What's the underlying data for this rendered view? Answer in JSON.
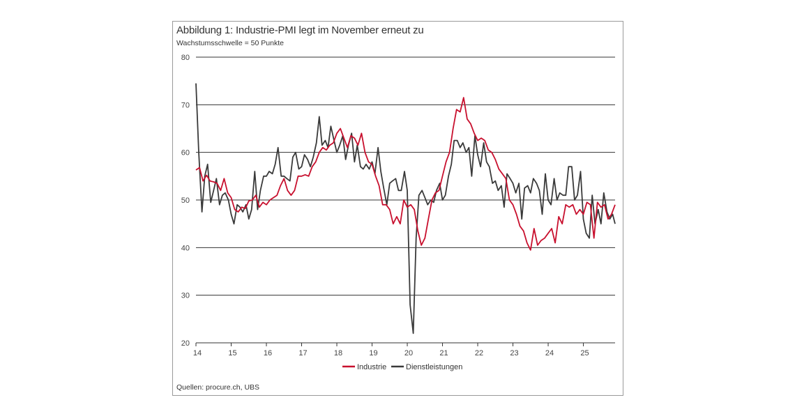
{
  "figure": {
    "title": "Abbildung 1: Industrie-PMI legt im November erneut zu",
    "subtitle": "Wachstumsschwelle = 50 Punkte",
    "source": "Quellen: procure.ch, UBS"
  },
  "colors": {
    "industrie": "#c8102e",
    "dienstleistungen": "#3a3a3a",
    "grid": "#333333"
  },
  "chart_data": {
    "type": "line",
    "title": "Abbildung 1: Industrie-PMI legt im November erneut zu",
    "subtitle": "Wachstumsschwelle = 50 Punkte",
    "xlabel": "",
    "ylabel": "",
    "xlim": [
      2014.0,
      2025.9
    ],
    "ylim": [
      20,
      80
    ],
    "yticks": [
      20,
      30,
      40,
      50,
      60,
      70,
      80
    ],
    "xticks": [
      {
        "value": 2014,
        "label": "14"
      },
      {
        "value": 2015,
        "label": "15"
      },
      {
        "value": 2016,
        "label": "16"
      },
      {
        "value": 2017,
        "label": "17"
      },
      {
        "value": 2018,
        "label": "18"
      },
      {
        "value": 2019,
        "label": "19"
      },
      {
        "value": 2020,
        "label": "20"
      },
      {
        "value": 2021,
        "label": "21"
      },
      {
        "value": 2022,
        "label": "22"
      },
      {
        "value": 2023,
        "label": "23"
      },
      {
        "value": 2024,
        "label": "24"
      },
      {
        "value": 2025,
        "label": "25"
      }
    ],
    "grid": "horizontal",
    "legend_position": "bottom-center",
    "series": [
      {
        "name": "Industrie",
        "color": "#c8102e",
        "points": [
          [
            2014.0,
            56.3
          ],
          [
            2014.1,
            56.8
          ],
          [
            2014.2,
            54.0
          ],
          [
            2014.3,
            55.2
          ],
          [
            2014.4,
            54.0
          ],
          [
            2014.5,
            53.8
          ],
          [
            2014.6,
            53.5
          ],
          [
            2014.7,
            52.0
          ],
          [
            2014.8,
            54.5
          ],
          [
            2014.9,
            51.5
          ],
          [
            2015.0,
            50.5
          ],
          [
            2015.1,
            48.0
          ],
          [
            2015.2,
            47.5
          ],
          [
            2015.3,
            48.5
          ],
          [
            2015.4,
            48.2
          ],
          [
            2015.5,
            49.8
          ],
          [
            2015.6,
            50.0
          ],
          [
            2015.7,
            51.0
          ],
          [
            2015.8,
            48.5
          ],
          [
            2015.9,
            49.5
          ],
          [
            2016.0,
            49.0
          ],
          [
            2016.1,
            50.0
          ],
          [
            2016.2,
            50.5
          ],
          [
            2016.3,
            51.0
          ],
          [
            2016.4,
            53.0
          ],
          [
            2016.5,
            54.5
          ],
          [
            2016.6,
            52.0
          ],
          [
            2016.7,
            51.0
          ],
          [
            2016.8,
            52.0
          ],
          [
            2016.9,
            55.0
          ],
          [
            2017.0,
            55.0
          ],
          [
            2017.1,
            55.3
          ],
          [
            2017.2,
            55.0
          ],
          [
            2017.3,
            57.0
          ],
          [
            2017.4,
            58.0
          ],
          [
            2017.5,
            60.0
          ],
          [
            2017.6,
            61.0
          ],
          [
            2017.7,
            60.5
          ],
          [
            2017.8,
            61.5
          ],
          [
            2017.9,
            62.0
          ],
          [
            2018.0,
            64.0
          ],
          [
            2018.1,
            65.0
          ],
          [
            2018.2,
            63.0
          ],
          [
            2018.3,
            61.0
          ],
          [
            2018.4,
            63.5
          ],
          [
            2018.5,
            63.0
          ],
          [
            2018.6,
            61.5
          ],
          [
            2018.7,
            64.0
          ],
          [
            2018.8,
            60.0
          ],
          [
            2018.9,
            58.0
          ],
          [
            2019.0,
            57.5
          ],
          [
            2019.1,
            55.0
          ],
          [
            2019.2,
            53.0
          ],
          [
            2019.3,
            49.0
          ],
          [
            2019.4,
            49.0
          ],
          [
            2019.5,
            48.0
          ],
          [
            2019.6,
            45.0
          ],
          [
            2019.7,
            46.5
          ],
          [
            2019.8,
            45.0
          ],
          [
            2019.9,
            50.0
          ],
          [
            2020.0,
            48.5
          ],
          [
            2020.1,
            49.0
          ],
          [
            2020.2,
            48.0
          ],
          [
            2020.3,
            43.5
          ],
          [
            2020.4,
            40.5
          ],
          [
            2020.5,
            42.0
          ],
          [
            2020.6,
            46.0
          ],
          [
            2020.7,
            50.0
          ],
          [
            2020.8,
            51.5
          ],
          [
            2020.9,
            52.0
          ],
          [
            2021.0,
            55.0
          ],
          [
            2021.1,
            58.0
          ],
          [
            2021.2,
            60.0
          ],
          [
            2021.3,
            65.0
          ],
          [
            2021.4,
            69.0
          ],
          [
            2021.5,
            68.5
          ],
          [
            2021.6,
            71.5
          ],
          [
            2021.7,
            67.0
          ],
          [
            2021.8,
            66.0
          ],
          [
            2021.9,
            64.0
          ],
          [
            2022.0,
            62.5
          ],
          [
            2022.1,
            63.0
          ],
          [
            2022.2,
            62.5
          ],
          [
            2022.3,
            60.5
          ],
          [
            2022.4,
            60.0
          ],
          [
            2022.5,
            58.5
          ],
          [
            2022.6,
            56.5
          ],
          [
            2022.7,
            55.5
          ],
          [
            2022.8,
            54.5
          ],
          [
            2022.9,
            50.0
          ],
          [
            2023.0,
            49.0
          ],
          [
            2023.1,
            47.0
          ],
          [
            2023.2,
            44.5
          ],
          [
            2023.3,
            43.5
          ],
          [
            2023.4,
            41.0
          ],
          [
            2023.5,
            39.5
          ],
          [
            2023.6,
            44.0
          ],
          [
            2023.7,
            40.5
          ],
          [
            2023.8,
            41.5
          ],
          [
            2023.9,
            42.0
          ],
          [
            2024.0,
            43.0
          ],
          [
            2024.1,
            44.0
          ],
          [
            2024.2,
            41.0
          ],
          [
            2024.3,
            46.5
          ],
          [
            2024.4,
            45.0
          ],
          [
            2024.5,
            49.0
          ],
          [
            2024.6,
            48.5
          ],
          [
            2024.7,
            49.0
          ],
          [
            2024.8,
            47.0
          ],
          [
            2024.9,
            48.0
          ],
          [
            2025.0,
            47.0
          ],
          [
            2025.1,
            49.5
          ],
          [
            2025.2,
            49.0
          ],
          [
            2025.3,
            42.0
          ],
          [
            2025.4,
            49.5
          ],
          [
            2025.5,
            48.5
          ],
          [
            2025.6,
            49.0
          ],
          [
            2025.7,
            46.0
          ],
          [
            2025.8,
            47.0
          ],
          [
            2025.9,
            49.0
          ]
        ]
      },
      {
        "name": "Dienstleistungen",
        "color": "#3a3a3a",
        "points": [
          [
            2014.0,
            74.5
          ],
          [
            2014.08,
            60.0
          ],
          [
            2014.17,
            47.5
          ],
          [
            2014.25,
            55.0
          ],
          [
            2014.33,
            57.5
          ],
          [
            2014.42,
            49.5
          ],
          [
            2014.5,
            52.0
          ],
          [
            2014.58,
            54.5
          ],
          [
            2014.67,
            49.0
          ],
          [
            2014.75,
            51.0
          ],
          [
            2014.83,
            51.5
          ],
          [
            2014.92,
            50.0
          ],
          [
            2015.0,
            47.0
          ],
          [
            2015.08,
            45.0
          ],
          [
            2015.17,
            49.0
          ],
          [
            2015.25,
            48.5
          ],
          [
            2015.33,
            47.5
          ],
          [
            2015.42,
            49.0
          ],
          [
            2015.5,
            46.0
          ],
          [
            2015.58,
            48.0
          ],
          [
            2015.67,
            56.0
          ],
          [
            2015.75,
            48.0
          ],
          [
            2015.83,
            52.0
          ],
          [
            2015.92,
            55.0
          ],
          [
            2016.0,
            55.0
          ],
          [
            2016.08,
            56.0
          ],
          [
            2016.17,
            55.5
          ],
          [
            2016.25,
            57.5
          ],
          [
            2016.33,
            61.0
          ],
          [
            2016.42,
            55.0
          ],
          [
            2016.5,
            55.0
          ],
          [
            2016.58,
            54.5
          ],
          [
            2016.67,
            54.0
          ],
          [
            2016.75,
            59.0
          ],
          [
            2016.83,
            60.0
          ],
          [
            2016.92,
            56.5
          ],
          [
            2017.0,
            57.0
          ],
          [
            2017.08,
            59.5
          ],
          [
            2017.17,
            58.5
          ],
          [
            2017.25,
            57.0
          ],
          [
            2017.33,
            59.0
          ],
          [
            2017.42,
            62.0
          ],
          [
            2017.5,
            67.5
          ],
          [
            2017.58,
            61.5
          ],
          [
            2017.67,
            62.5
          ],
          [
            2017.75,
            61.0
          ],
          [
            2017.83,
            65.5
          ],
          [
            2017.92,
            62.5
          ],
          [
            2018.0,
            60.0
          ],
          [
            2018.08,
            61.5
          ],
          [
            2018.17,
            63.5
          ],
          [
            2018.25,
            58.5
          ],
          [
            2018.33,
            61.5
          ],
          [
            2018.42,
            64.0
          ],
          [
            2018.5,
            58.0
          ],
          [
            2018.58,
            61.5
          ],
          [
            2018.67,
            57.0
          ],
          [
            2018.75,
            56.5
          ],
          [
            2018.83,
            57.5
          ],
          [
            2018.92,
            56.5
          ],
          [
            2019.0,
            58.0
          ],
          [
            2019.08,
            55.5
          ],
          [
            2019.17,
            61.0
          ],
          [
            2019.25,
            56.0
          ],
          [
            2019.33,
            52.5
          ],
          [
            2019.42,
            49.0
          ],
          [
            2019.5,
            53.5
          ],
          [
            2019.58,
            54.0
          ],
          [
            2019.67,
            54.5
          ],
          [
            2019.75,
            52.0
          ],
          [
            2019.83,
            52.0
          ],
          [
            2019.92,
            56.0
          ],
          [
            2020.0,
            52.0
          ],
          [
            2020.08,
            28.0
          ],
          [
            2020.17,
            22.0
          ],
          [
            2020.25,
            42.0
          ],
          [
            2020.33,
            51.0
          ],
          [
            2020.42,
            52.0
          ],
          [
            2020.5,
            50.5
          ],
          [
            2020.58,
            49.0
          ],
          [
            2020.67,
            50.0
          ],
          [
            2020.75,
            49.5
          ],
          [
            2020.83,
            52.0
          ],
          [
            2020.92,
            53.5
          ],
          [
            2021.0,
            50.0
          ],
          [
            2021.08,
            51.0
          ],
          [
            2021.17,
            55.0
          ],
          [
            2021.25,
            57.5
          ],
          [
            2021.33,
            62.5
          ],
          [
            2021.42,
            62.5
          ],
          [
            2021.5,
            61.0
          ],
          [
            2021.58,
            62.0
          ],
          [
            2021.67,
            60.0
          ],
          [
            2021.75,
            61.0
          ],
          [
            2021.83,
            55.0
          ],
          [
            2021.92,
            63.5
          ],
          [
            2022.0,
            59.5
          ],
          [
            2022.08,
            57.0
          ],
          [
            2022.17,
            62.0
          ],
          [
            2022.25,
            58.0
          ],
          [
            2022.33,
            57.0
          ],
          [
            2022.42,
            53.5
          ],
          [
            2022.5,
            54.0
          ],
          [
            2022.58,
            52.0
          ],
          [
            2022.67,
            53.0
          ],
          [
            2022.75,
            48.5
          ],
          [
            2022.83,
            55.5
          ],
          [
            2022.92,
            54.5
          ],
          [
            2023.0,
            53.5
          ],
          [
            2023.08,
            51.5
          ],
          [
            2023.17,
            53.5
          ],
          [
            2023.25,
            46.0
          ],
          [
            2023.33,
            52.5
          ],
          [
            2023.42,
            53.0
          ],
          [
            2023.5,
            51.5
          ],
          [
            2023.58,
            54.5
          ],
          [
            2023.67,
            53.5
          ],
          [
            2023.75,
            52.0
          ],
          [
            2023.83,
            47.0
          ],
          [
            2023.92,
            55.5
          ],
          [
            2024.0,
            50.0
          ],
          [
            2024.08,
            49.0
          ],
          [
            2024.17,
            54.5
          ],
          [
            2024.25,
            50.0
          ],
          [
            2024.33,
            51.5
          ],
          [
            2024.42,
            51.0
          ],
          [
            2024.5,
            51.0
          ],
          [
            2024.58,
            57.0
          ],
          [
            2024.67,
            57.0
          ],
          [
            2024.75,
            50.0
          ],
          [
            2024.83,
            51.0
          ],
          [
            2024.92,
            56.0
          ],
          [
            2025.0,
            46.0
          ],
          [
            2025.08,
            43.0
          ],
          [
            2025.17,
            42.0
          ],
          [
            2025.25,
            51.0
          ],
          [
            2025.33,
            45.0
          ],
          [
            2025.42,
            48.0
          ],
          [
            2025.5,
            45.0
          ],
          [
            2025.58,
            51.5
          ],
          [
            2025.67,
            47.5
          ],
          [
            2025.75,
            46.0
          ],
          [
            2025.83,
            47.0
          ],
          [
            2025.9,
            45.0
          ]
        ]
      }
    ],
    "legend": [
      {
        "label": "Industrie",
        "color": "#c8102e"
      },
      {
        "label": "Dienstleistungen",
        "color": "#3a3a3a"
      }
    ]
  }
}
